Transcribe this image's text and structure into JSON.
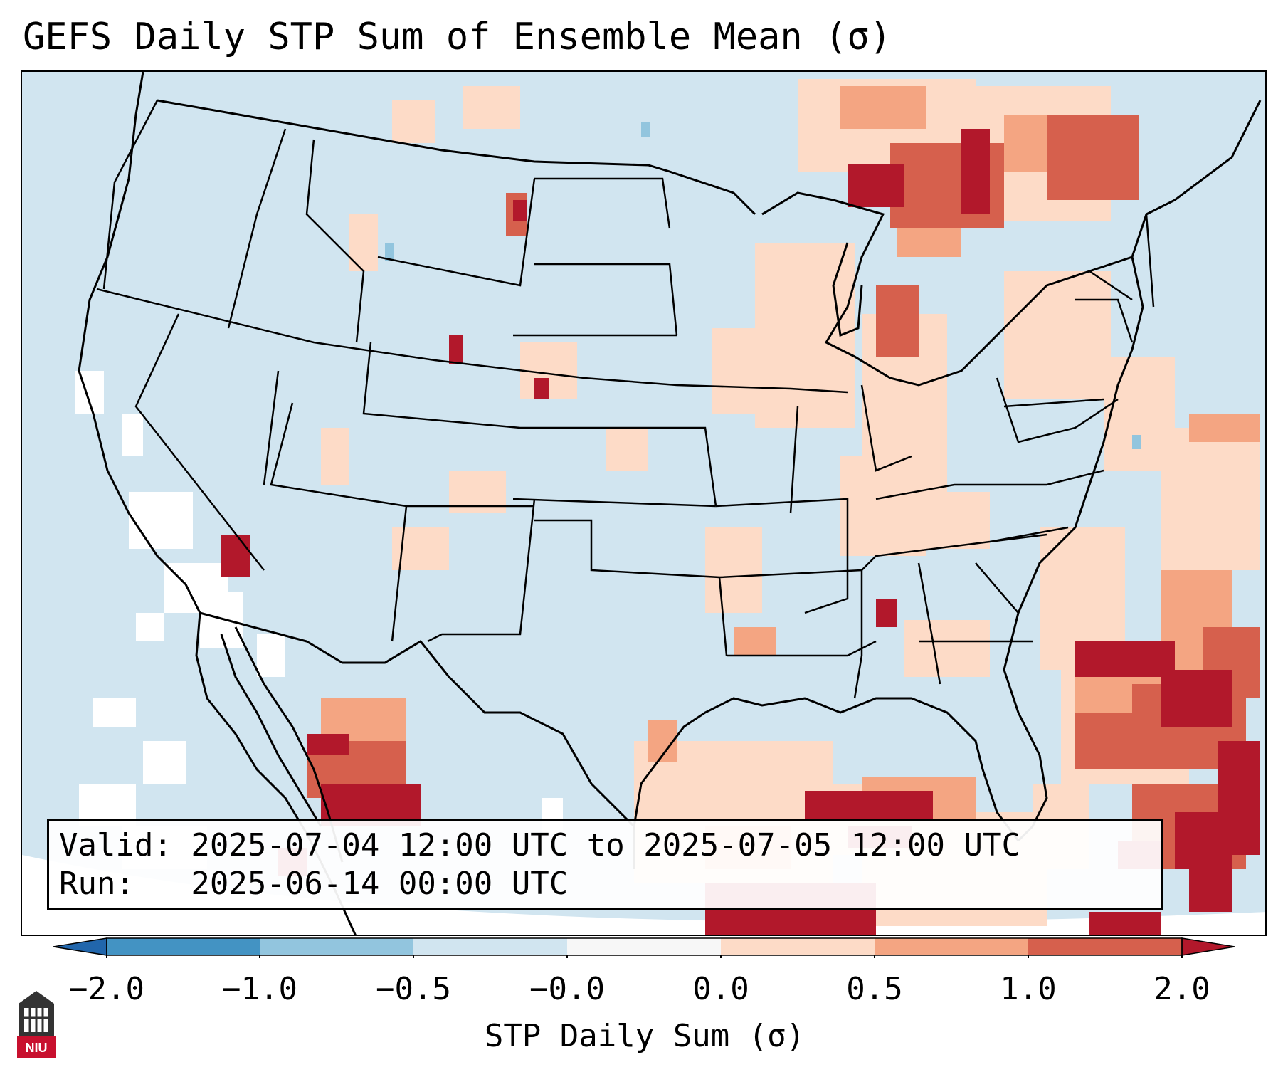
{
  "title": "GEFS Daily STP Sum of Ensemble Mean (σ)",
  "map": {
    "background_color": "#d1e5f0",
    "regions": "Continental United States, southern Canada, northern Mexico, Gulf of Mexico, western Atlantic"
  },
  "info": {
    "valid_line": "Valid: 2025-07-04 12:00 UTC to 2025-07-05 12:00 UTC",
    "run_line": "Run:   2025-06-14 00:00 UTC"
  },
  "colorbar": {
    "label": "STP Daily Sum (σ)",
    "ticks": [
      "−2.0",
      "−1.0",
      "−0.5",
      "−0.0",
      "0.0",
      "0.5",
      "1.0",
      "2.0"
    ],
    "bins": [
      {
        "range": "< -2.0",
        "color": "#2166ac"
      },
      {
        "range": "-2.0 to -1.0",
        "color": "#4393c3"
      },
      {
        "range": "-1.0 to -0.5",
        "color": "#92c5de"
      },
      {
        "range": "-0.5 to -0.0",
        "color": "#d1e5f0"
      },
      {
        "range": "-0.0 to 0.0",
        "color": "#f7f7f7"
      },
      {
        "range": "0.0 to 0.5",
        "color": "#fddbc7"
      },
      {
        "range": "0.5 to 1.0",
        "color": "#f4a582"
      },
      {
        "range": "1.0 to 2.0",
        "color": "#d6604d"
      },
      {
        "range": "> 2.0",
        "color": "#b2182b"
      }
    ]
  },
  "logo": {
    "text": "NIU",
    "icon": "university-seal-icon",
    "color": "#c8102e"
  }
}
